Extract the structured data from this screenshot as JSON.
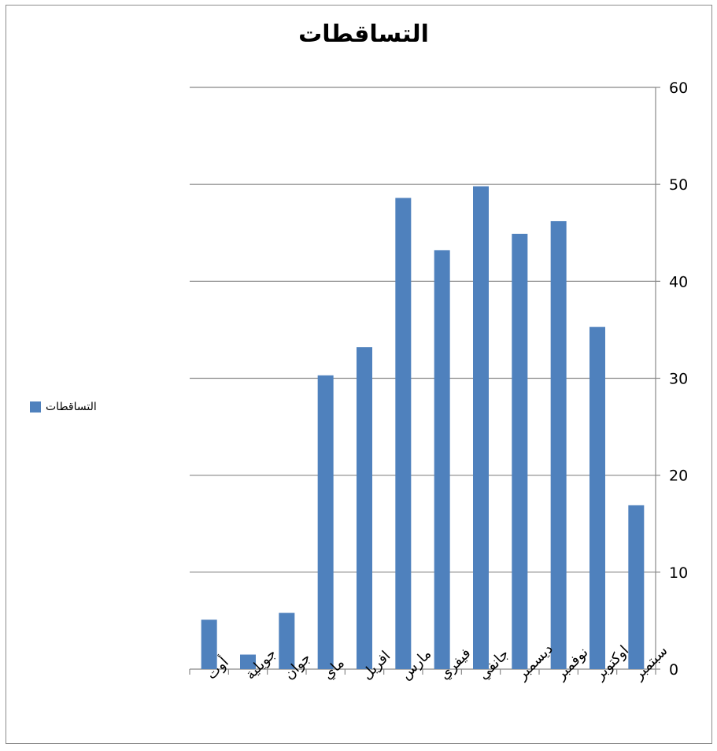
{
  "chart_data": {
    "type": "bar",
    "title": "التساقطات",
    "categories": [
      "أوت",
      "جويلية",
      "جوان",
      "ماي",
      "افريل",
      "مارس",
      "فيفري",
      "جانفي",
      "ديسمبر",
      "نوفمبر",
      "اوكتوبر",
      "سبتمبر"
    ],
    "series": [
      {
        "name": "التساقطات",
        "values": [
          5.1,
          1.5,
          5.8,
          30.3,
          33.2,
          48.6,
          43.2,
          49.8,
          44.9,
          46.2,
          35.3,
          16.9
        ]
      }
    ],
    "ylim": [
      0,
      60
    ],
    "yticks": [
      0,
      10,
      20,
      30,
      40,
      50,
      60
    ],
    "y_axis_side": "right",
    "grid": true,
    "legend_position": "left",
    "bar_color": "#4f81bd"
  }
}
